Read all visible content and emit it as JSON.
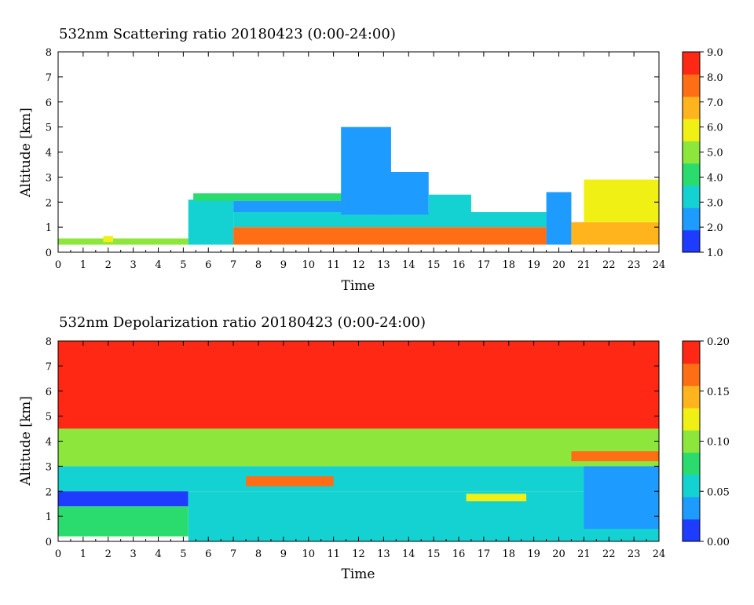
{
  "chart_data": [
    {
      "type": "heatmap",
      "title": "532nm Scattering ratio  20180423 (0:00-24:00)",
      "xlabel": "Time",
      "ylabel": "Altitude [km]",
      "xlim": [
        0,
        24
      ],
      "ylim": [
        0,
        8
      ],
      "x_ticks": [
        "0",
        "1",
        "2",
        "3",
        "4",
        "5",
        "6",
        "7",
        "8",
        "9",
        "10",
        "11",
        "12",
        "13",
        "14",
        "15",
        "16",
        "17",
        "18",
        "19",
        "20",
        "21",
        "22",
        "23",
        "24"
      ],
      "y_ticks": [
        "0",
        "1",
        "2",
        "3",
        "4",
        "5",
        "6",
        "7",
        "8"
      ],
      "colorbar": {
        "range": [
          1.0,
          9.0
        ],
        "ticks": [
          "1.0",
          "2.0",
          "3.0",
          "4.0",
          "5.0",
          "6.0",
          "7.0",
          "8.0",
          "9.0"
        ],
        "colormap": [
          "#1e3cff",
          "#1e9bff",
          "#15d2d2",
          "#2adc6e",
          "#8ce63c",
          "#f0f014",
          "#ffb41e",
          "#ff6e14",
          "#ff2814"
        ]
      },
      "regions": [
        {
          "x": [
            0.0,
            5.2
          ],
          "y": [
            0.3,
            0.55
          ],
          "value": 5.0
        },
        {
          "x": [
            1.8,
            2.2
          ],
          "y": [
            0.4,
            0.65
          ],
          "value": 6.0
        },
        {
          "x": [
            5.2,
            7.0
          ],
          "y": [
            0.3,
            2.1
          ],
          "value": 3.0
        },
        {
          "x": [
            5.4,
            12.0
          ],
          "y": [
            2.05,
            2.35
          ],
          "value": 4.5
        },
        {
          "x": [
            7.0,
            12.0
          ],
          "y": [
            1.6,
            2.05
          ],
          "value": 2.3
        },
        {
          "x": [
            7.0,
            19.5
          ],
          "y": [
            1.0,
            1.6
          ],
          "value": 3.5
        },
        {
          "x": [
            7.0,
            19.5
          ],
          "y": [
            0.3,
            1.0
          ],
          "value": 7.5
        },
        {
          "x": [
            11.3,
            13.3
          ],
          "y": [
            1.5,
            5.0
          ],
          "value": 2.0
        },
        {
          "x": [
            12.8,
            14.8
          ],
          "y": [
            1.5,
            3.2
          ],
          "value": 2.2
        },
        {
          "x": [
            14.8,
            16.5
          ],
          "y": [
            1.5,
            2.3
          ],
          "value": 3.0
        },
        {
          "x": [
            19.5,
            20.5
          ],
          "y": [
            0.3,
            2.4
          ],
          "value": 2.2
        },
        {
          "x": [
            20.5,
            24.0
          ],
          "y": [
            0.3,
            1.2
          ],
          "value": 7.0
        },
        {
          "x": [
            21.0,
            24.0
          ],
          "y": [
            1.2,
            2.9
          ],
          "value": 5.5
        }
      ]
    },
    {
      "type": "heatmap",
      "title": "532nm Depolarization ratio  20180423 (0:00-24:00)",
      "xlabel": "Time",
      "ylabel": "Altitude [km]",
      "xlim": [
        0,
        24
      ],
      "ylim": [
        0,
        8
      ],
      "x_ticks": [
        "0",
        "1",
        "2",
        "3",
        "4",
        "5",
        "6",
        "7",
        "8",
        "9",
        "10",
        "11",
        "12",
        "13",
        "14",
        "15",
        "16",
        "17",
        "18",
        "19",
        "20",
        "21",
        "22",
        "23",
        "24"
      ],
      "y_ticks": [
        "0",
        "1",
        "2",
        "3",
        "4",
        "5",
        "6",
        "7",
        "8"
      ],
      "colorbar": {
        "range": [
          0.0,
          0.2
        ],
        "ticks": [
          "0.00",
          "0.05",
          "0.10",
          "0.15",
          "0.20"
        ],
        "colormap": [
          "#1e3cff",
          "#1e9bff",
          "#15d2d2",
          "#2adc6e",
          "#8ce63c",
          "#f0f014",
          "#ffb41e",
          "#ff6e14",
          "#ff2814"
        ]
      },
      "regions": [
        {
          "x": [
            0.0,
            24.0
          ],
          "y": [
            4.5,
            8.0
          ],
          "value": 0.18
        },
        {
          "x": [
            0.0,
            24.0
          ],
          "y": [
            3.0,
            4.5
          ],
          "value": 0.1
        },
        {
          "x": [
            0.0,
            24.0
          ],
          "y": [
            2.0,
            3.0
          ],
          "value": 0.06
        },
        {
          "x": [
            0.0,
            5.2
          ],
          "y": [
            1.4,
            2.0
          ],
          "value": 0.02
        },
        {
          "x": [
            0.0,
            5.2
          ],
          "y": [
            0.2,
            1.4
          ],
          "value": 0.08
        },
        {
          "x": [
            5.2,
            24.0
          ],
          "y": [
            0.0,
            2.0
          ],
          "value": 0.05
        },
        {
          "x": [
            7.5,
            11.0
          ],
          "y": [
            2.2,
            2.6
          ],
          "value": 0.16
        },
        {
          "x": [
            16.3,
            18.7
          ],
          "y": [
            1.6,
            1.9
          ],
          "value": 0.12
        },
        {
          "x": [
            20.5,
            24.0
          ],
          "y": [
            3.2,
            3.6
          ],
          "value": 0.16
        },
        {
          "x": [
            21.0,
            24.0
          ],
          "y": [
            0.5,
            3.0
          ],
          "value": 0.03
        }
      ]
    }
  ]
}
